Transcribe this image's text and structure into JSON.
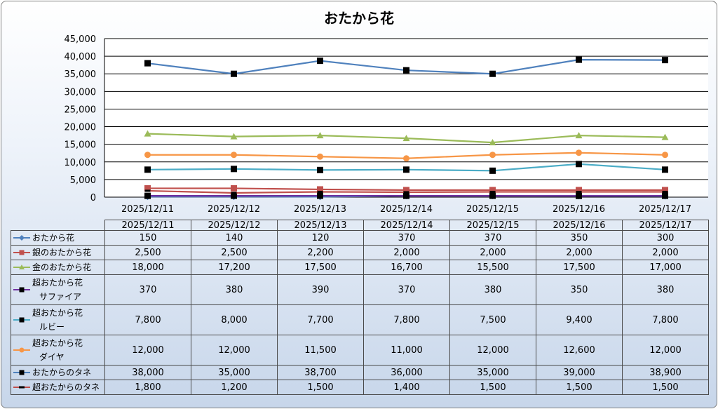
{
  "chart_data": {
    "type": "line",
    "title": "おたから花",
    "categories": [
      "2025/12/11",
      "2025/12/12",
      "2025/12/13",
      "2025/12/14",
      "2025/12/15",
      "2025/12/16",
      "2025/12/17"
    ],
    "ylim": [
      0,
      45000
    ],
    "yticks": [
      "0",
      "5,000",
      "10,000",
      "15,000",
      "20,000",
      "25,000",
      "30,000",
      "35,000",
      "40,000",
      "45,000"
    ],
    "grid": true,
    "legend": "data-table",
    "series": [
      {
        "name_lines": [
          "おたから花"
        ],
        "color": "#4f81bd",
        "marker": "diamond",
        "values": [
          150,
          140,
          120,
          370,
          370,
          350,
          300
        ],
        "labels": [
          "150",
          "140",
          "120",
          "370",
          "370",
          "350",
          "300"
        ]
      },
      {
        "name_lines": [
          "銀のおたから花"
        ],
        "color": "#c0504d",
        "marker": "square",
        "values": [
          2500,
          2500,
          2200,
          2000,
          2000,
          2000,
          2000
        ],
        "labels": [
          "2,500",
          "2,500",
          "2,200",
          "2,000",
          "2,000",
          "2,000",
          "2,000"
        ]
      },
      {
        "name_lines": [
          "金のおたから花"
        ],
        "color": "#9bbb59",
        "marker": "triangle",
        "values": [
          18000,
          17200,
          17500,
          16700,
          15500,
          17500,
          17000
        ],
        "labels": [
          "18,000",
          "17,200",
          "17,500",
          "16,700",
          "15,500",
          "17,500",
          "17,000"
        ]
      },
      {
        "name_lines": [
          "超おたから花",
          "サファイア"
        ],
        "color": "#7030a0",
        "marker": "square-black",
        "values": [
          370,
          380,
          390,
          370,
          380,
          350,
          380
        ],
        "labels": [
          "370",
          "380",
          "390",
          "370",
          "380",
          "350",
          "380"
        ]
      },
      {
        "name_lines": [
          "超おたから花",
          "ルビー"
        ],
        "color": "#4bacc6",
        "marker": "square-black",
        "values": [
          7800,
          8000,
          7700,
          7800,
          7500,
          9400,
          7800
        ],
        "labels": [
          "7,800",
          "8,000",
          "7,700",
          "7,800",
          "7,500",
          "9,400",
          "7,800"
        ]
      },
      {
        "name_lines": [
          "超おたから花",
          "ダイヤ"
        ],
        "color": "#f79646",
        "marker": "circle",
        "values": [
          12000,
          12000,
          11500,
          11000,
          12000,
          12600,
          12000
        ],
        "labels": [
          "12,000",
          "12,000",
          "11,500",
          "11,000",
          "12,000",
          "12,600",
          "12,000"
        ]
      },
      {
        "name_lines": [
          "おたからのタネ"
        ],
        "color": "#4f81bd",
        "marker": "square-black",
        "values": [
          38000,
          35000,
          38700,
          36000,
          35000,
          39000,
          38900
        ],
        "labels": [
          "38,000",
          "35,000",
          "38,700",
          "36,000",
          "35,000",
          "39,000",
          "38,900"
        ]
      },
      {
        "name_lines": [
          "超おたからのタネ"
        ],
        "color": "#c0504d",
        "marker": "dash",
        "values": [
          1800,
          1200,
          1500,
          1400,
          1500,
          1500,
          1500
        ],
        "labels": [
          "1,800",
          "1,200",
          "1,500",
          "1,400",
          "1,500",
          "1,500",
          "1,500"
        ]
      }
    ]
  }
}
